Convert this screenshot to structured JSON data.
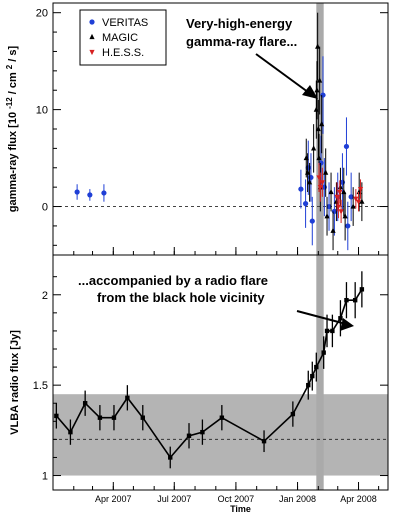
{
  "chart_data": [
    {
      "type": "scatter",
      "panel": "top",
      "ylabel": "gamma-ray flux [10 -12 / cm 2 / s]",
      "ylabel_parts": {
        "base": "gamma-ray flux [10",
        "exp": "-12",
        "mid": "/ cm",
        "exp2": "2",
        "tail": "/ s]"
      },
      "ylim": [
        -5,
        21
      ],
      "yticks": [
        0,
        10,
        20
      ],
      "ytick_labels": [
        "0",
        "10",
        "20"
      ],
      "xlim_label": "Jan 2007 - May 2008",
      "reference_line": 0,
      "flare_band_label": "gray vertical band",
      "annotation": [
        "Very-high-energy",
        "gamma-ray flare..."
      ],
      "legend": {
        "position": "top-left",
        "entries": [
          {
            "name": "VERITAS",
            "marker": "circle",
            "color": "#1f3fd6"
          },
          {
            "name": "MAGIC",
            "marker": "triangle-up",
            "color": "#000000"
          },
          {
            "name": "H.E.S.S.",
            "marker": "triangle-down",
            "color": "#d62020"
          }
        ]
      },
      "series": [
        {
          "name": "VERITAS",
          "color": "#1f3fd6",
          "marker": "circle",
          "points": [
            {
              "x": "2007-02-06",
              "y": 1.5,
              "err": 0.8
            },
            {
              "x": "2007-02-25",
              "y": 1.2,
              "err": 0.6
            },
            {
              "x": "2007-03-18",
              "y": 1.4,
              "err": 0.9
            },
            {
              "x": "2008-01-06",
              "y": 1.8,
              "err": 2.0
            },
            {
              "x": "2008-01-13",
              "y": 0.3,
              "err": 2.5
            },
            {
              "x": "2008-01-17",
              "y": 4.0,
              "err": 2.8
            },
            {
              "x": "2008-01-21",
              "y": 3.0,
              "err": 2.5
            },
            {
              "x": "2008-01-23",
              "y": -1.5,
              "err": 2.5
            },
            {
              "x": "2008-02-05",
              "y": 4.5,
              "err": 2.8
            },
            {
              "x": "2008-02-08",
              "y": 11.5,
              "err": 4.0
            },
            {
              "x": "2008-02-10",
              "y": 2.0,
              "err": 3.0
            },
            {
              "x": "2008-02-17",
              "y": 0.0,
              "err": 2.5
            },
            {
              "x": "2008-02-25",
              "y": -0.5,
              "err": 2.5
            },
            {
              "x": "2008-03-01",
              "y": 1.0,
              "err": 2.5
            },
            {
              "x": "2008-03-08",
              "y": 2.5,
              "err": 3.0
            },
            {
              "x": "2008-03-14",
              "y": 6.2,
              "err": 3.0
            },
            {
              "x": "2008-03-16",
              "y": -2.0,
              "err": 2.5
            },
            {
              "x": "2008-03-21",
              "y": 1.0,
              "err": 2.5
            }
          ]
        },
        {
          "name": "MAGIC",
          "color": "#000000",
          "marker": "triangle-up",
          "points": [
            {
              "x": "2008-01-14",
              "y": 5.0,
              "err": 2.0
            },
            {
              "x": "2008-01-16",
              "y": 3.5,
              "err": 2.0
            },
            {
              "x": "2008-01-19",
              "y": 2.5,
              "err": 2.0
            },
            {
              "x": "2008-01-25",
              "y": 6.0,
              "err": 2.5
            },
            {
              "x": "2008-01-29",
              "y": 10.0,
              "err": 3.0
            },
            {
              "x": "2008-01-30",
              "y": 12.0,
              "err": 3.0
            },
            {
              "x": "2008-01-31",
              "y": 16.5,
              "err": 3.5
            },
            {
              "x": "2008-02-01",
              "y": 8.0,
              "err": 3.0
            },
            {
              "x": "2008-02-02",
              "y": 5.0,
              "err": 2.5
            },
            {
              "x": "2008-02-03",
              "y": 13.0,
              "err": 3.5
            },
            {
              "x": "2008-02-04",
              "y": 2.0,
              "err": 2.5
            },
            {
              "x": "2008-02-06",
              "y": 8.5,
              "err": 3.0
            },
            {
              "x": "2008-02-12",
              "y": 3.5,
              "err": 2.5
            },
            {
              "x": "2008-02-14",
              "y": -1.0,
              "err": 2.0
            },
            {
              "x": "2008-02-20",
              "y": 1.5,
              "err": 2.0
            },
            {
              "x": "2008-02-23",
              "y": -2.5,
              "err": 2.0
            },
            {
              "x": "2008-02-28",
              "y": 0.5,
              "err": 2.0
            },
            {
              "x": "2008-03-05",
              "y": 2.0,
              "err": 2.0
            },
            {
              "x": "2008-03-10",
              "y": 1.5,
              "err": 2.5
            },
            {
              "x": "2008-03-12",
              "y": -1.0,
              "err": 2.5
            },
            {
              "x": "2008-03-24",
              "y": 0.0,
              "err": 2.0
            },
            {
              "x": "2008-04-02",
              "y": 1.5,
              "err": 2.0
            },
            {
              "x": "2008-04-06",
              "y": 0.5,
              "err": 2.0
            }
          ]
        },
        {
          "name": "H.E.S.S.",
          "color": "#d62020",
          "marker": "triangle-down",
          "points": [
            {
              "x": "2008-02-02",
              "y": 3.0,
              "err": 1.5
            },
            {
              "x": "2008-02-04",
              "y": 2.0,
              "err": 1.5
            },
            {
              "x": "2008-02-07",
              "y": 2.5,
              "err": 1.5
            },
            {
              "x": "2008-02-29",
              "y": 1.0,
              "err": 1.5
            },
            {
              "x": "2008-03-02",
              "y": 0.0,
              "err": 1.2
            },
            {
              "x": "2008-03-04",
              "y": 1.5,
              "err": 1.2
            },
            {
              "x": "2008-03-06",
              "y": -0.5,
              "err": 1.2
            },
            {
              "x": "2008-03-28",
              "y": 0.8,
              "err": 1.0
            },
            {
              "x": "2008-04-01",
              "y": 0.5,
              "err": 1.0
            },
            {
              "x": "2008-04-04",
              "y": 1.8,
              "err": 1.0
            }
          ]
        }
      ]
    },
    {
      "type": "line",
      "panel": "bottom",
      "ylabel": "VLBA radio flux [Jy]",
      "xlabel": "Time",
      "ylim": [
        0.92,
        2.22
      ],
      "yticks": [
        1,
        1.5,
        2
      ],
      "ytick_labels": [
        "1",
        "1.5",
        "2"
      ],
      "xticks": [
        "2007-04-01",
        "2007-07-01",
        "2007-10-01",
        "2008-01-01",
        "2008-04-01"
      ],
      "xtick_labels": [
        "Apr 2007",
        "Jul 2007",
        "Oct 2007",
        "Jan 2008",
        "Apr 2008"
      ],
      "xlim": [
        "2007-01-01",
        "2008-05-15"
      ],
      "reference_line": 1.2,
      "band": [
        1.0,
        1.45
      ],
      "annotation": [
        "...accompanied by a radio flare",
        "from the black hole vicinity"
      ],
      "series": [
        {
          "name": "VLBA",
          "color": "#000000",
          "marker": "square",
          "points": [
            {
              "x": "2007-01-06",
              "y": 1.33,
              "err": 0.07
            },
            {
              "x": "2007-01-27",
              "y": 1.24,
              "err": 0.07
            },
            {
              "x": "2007-02-18",
              "y": 1.4,
              "err": 0.07
            },
            {
              "x": "2007-03-12",
              "y": 1.32,
              "err": 0.07
            },
            {
              "x": "2007-04-02",
              "y": 1.32,
              "err": 0.07
            },
            {
              "x": "2007-04-22",
              "y": 1.43,
              "err": 0.07
            },
            {
              "x": "2007-05-15",
              "y": 1.32,
              "err": 0.07
            },
            {
              "x": "2007-06-25",
              "y": 1.1,
              "err": 0.06
            },
            {
              "x": "2007-07-23",
              "y": 1.22,
              "err": 0.07
            },
            {
              "x": "2007-08-12",
              "y": 1.24,
              "err": 0.07
            },
            {
              "x": "2007-09-10",
              "y": 1.32,
              "err": 0.07
            },
            {
              "x": "2007-11-12",
              "y": 1.19,
              "err": 0.06
            },
            {
              "x": "2007-12-25",
              "y": 1.34,
              "err": 0.07
            },
            {
              "x": "2008-01-17",
              "y": 1.5,
              "err": 0.08
            },
            {
              "x": "2008-01-23",
              "y": 1.55,
              "err": 0.08
            },
            {
              "x": "2008-01-29",
              "y": 1.6,
              "err": 0.08
            },
            {
              "x": "2008-02-09",
              "y": 1.68,
              "err": 0.09
            },
            {
              "x": "2008-02-14",
              "y": 1.8,
              "err": 0.09
            },
            {
              "x": "2008-02-22",
              "y": 1.8,
              "err": 0.09
            },
            {
              "x": "2008-03-05",
              "y": 1.87,
              "err": 0.1
            },
            {
              "x": "2008-03-14",
              "y": 1.97,
              "err": 0.1
            },
            {
              "x": "2008-03-27",
              "y": 1.97,
              "err": 0.1
            },
            {
              "x": "2008-04-06",
              "y": 2.03,
              "err": 0.1
            }
          ]
        }
      ]
    }
  ],
  "flare_band": {
    "start": "2008-01-29",
    "end": "2008-02-09",
    "color": "#aaaaaa"
  },
  "radio_band_color": "#b4b4b4"
}
